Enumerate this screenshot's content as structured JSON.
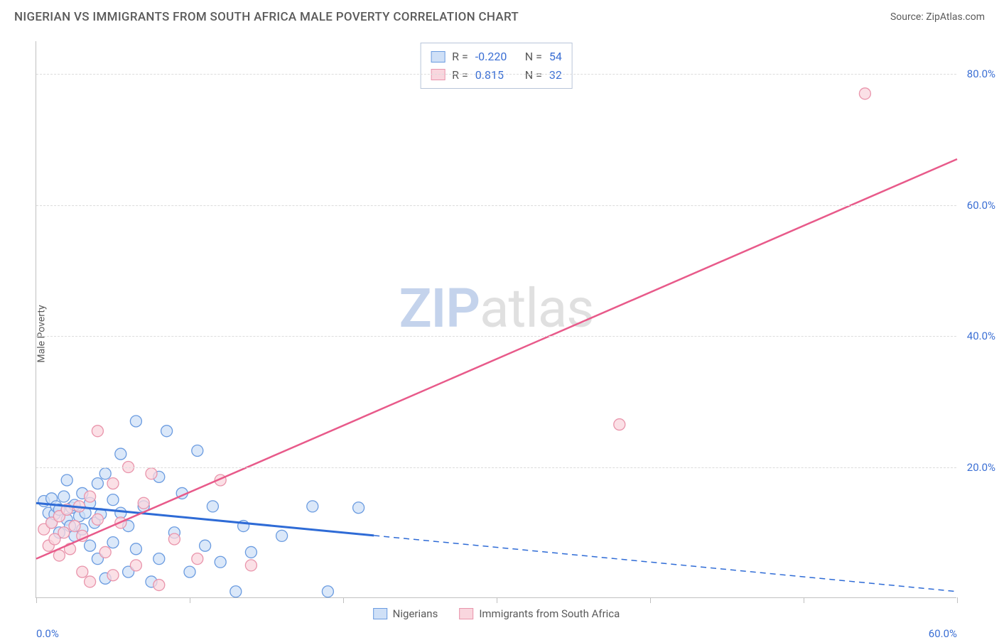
{
  "title": "NIGERIAN VS IMMIGRANTS FROM SOUTH AFRICA MALE POVERTY CORRELATION CHART",
  "source": "Source: ZipAtlas.com",
  "y_axis_label": "Male Poverty",
  "watermark": {
    "part1": "ZIP",
    "part2": "atlas"
  },
  "chart": {
    "type": "scatter",
    "xlim": [
      0,
      60
    ],
    "ylim": [
      0,
      85
    ],
    "x_ticks": [
      0,
      10,
      20,
      30,
      40,
      50,
      60
    ],
    "x_tick_labels": [
      "0.0%",
      "",
      "",
      "",
      "",
      "",
      "60.0%"
    ],
    "y_ticks": [
      20,
      40,
      60,
      80
    ],
    "y_tick_labels": [
      "20.0%",
      "40.0%",
      "60.0%",
      "80.0%"
    ],
    "grid_color": "#dcdcdc",
    "axis_color": "#c0c0c0",
    "background_color": "#ffffff",
    "tick_label_color": "#3b6fd4",
    "series": [
      {
        "name": "Nigerians",
        "color_fill": "#cfe0f7",
        "color_stroke": "#6a9be0",
        "marker_radius": 8,
        "trend_color": "#2e6bd6",
        "trend_width": 3,
        "trend_solid_x_end": 22,
        "trend": {
          "x1": 0,
          "y1": 14.5,
          "x2": 60,
          "y2": 1.0
        },
        "R": "-0.220",
        "N": "54",
        "points": [
          [
            0.5,
            14.8
          ],
          [
            0.8,
            13.0
          ],
          [
            1.0,
            15.2
          ],
          [
            1.0,
            11.5
          ],
          [
            1.2,
            12.8
          ],
          [
            1.3,
            14.0
          ],
          [
            1.5,
            10.0
          ],
          [
            1.5,
            13.5
          ],
          [
            1.8,
            15.5
          ],
          [
            2.0,
            12.0
          ],
          [
            2.0,
            18.0
          ],
          [
            2.2,
            11.0
          ],
          [
            2.3,
            13.8
          ],
          [
            2.5,
            9.5
          ],
          [
            2.5,
            14.2
          ],
          [
            2.8,
            12.5
          ],
          [
            3.0,
            16.0
          ],
          [
            3.0,
            10.5
          ],
          [
            3.2,
            13.0
          ],
          [
            3.5,
            8.0
          ],
          [
            3.5,
            14.5
          ],
          [
            3.8,
            11.5
          ],
          [
            4.0,
            17.5
          ],
          [
            4.0,
            6.0
          ],
          [
            4.2,
            12.8
          ],
          [
            4.5,
            19.0
          ],
          [
            4.5,
            3.0
          ],
          [
            5.0,
            15.0
          ],
          [
            5.0,
            8.5
          ],
          [
            5.5,
            13.0
          ],
          [
            5.5,
            22.0
          ],
          [
            6.0,
            4.0
          ],
          [
            6.0,
            11.0
          ],
          [
            6.5,
            27.0
          ],
          [
            6.5,
            7.5
          ],
          [
            7.0,
            14.0
          ],
          [
            7.5,
            2.5
          ],
          [
            8.0,
            18.5
          ],
          [
            8.0,
            6.0
          ],
          [
            8.5,
            25.5
          ],
          [
            9.0,
            10.0
          ],
          [
            9.5,
            16.0
          ],
          [
            10.0,
            4.0
          ],
          [
            10.5,
            22.5
          ],
          [
            11.0,
            8.0
          ],
          [
            11.5,
            14.0
          ],
          [
            12.0,
            5.5
          ],
          [
            13.0,
            1.0
          ],
          [
            13.5,
            11.0
          ],
          [
            14.0,
            7.0
          ],
          [
            16.0,
            9.5
          ],
          [
            18.0,
            14.0
          ],
          [
            19.0,
            1.0
          ],
          [
            21.0,
            13.8
          ]
        ]
      },
      {
        "name": "Immigrants from South Africa",
        "color_fill": "#f9d6de",
        "color_stroke": "#e994ab",
        "marker_radius": 8,
        "trend_color": "#e85a8a",
        "trend_width": 2.5,
        "trend_solid_x_end": 60,
        "trend": {
          "x1": 0,
          "y1": 6.0,
          "x2": 60,
          "y2": 67.0
        },
        "R": "0.815",
        "N": "32",
        "points": [
          [
            0.5,
            10.5
          ],
          [
            0.8,
            8.0
          ],
          [
            1.0,
            11.5
          ],
          [
            1.2,
            9.0
          ],
          [
            1.5,
            12.5
          ],
          [
            1.5,
            6.5
          ],
          [
            1.8,
            10.0
          ],
          [
            2.0,
            13.5
          ],
          [
            2.2,
            7.5
          ],
          [
            2.5,
            11.0
          ],
          [
            2.8,
            14.0
          ],
          [
            3.0,
            4.0
          ],
          [
            3.0,
            9.5
          ],
          [
            3.5,
            15.5
          ],
          [
            3.5,
            2.5
          ],
          [
            4.0,
            12.0
          ],
          [
            4.0,
            25.5
          ],
          [
            4.5,
            7.0
          ],
          [
            5.0,
            17.5
          ],
          [
            5.0,
            3.5
          ],
          [
            5.5,
            11.5
          ],
          [
            6.0,
            20.0
          ],
          [
            6.5,
            5.0
          ],
          [
            7.0,
            14.5
          ],
          [
            7.5,
            19.0
          ],
          [
            8.0,
            2.0
          ],
          [
            9.0,
            9.0
          ],
          [
            10.5,
            6.0
          ],
          [
            12.0,
            18.0
          ],
          [
            14.0,
            5.0
          ],
          [
            38.0,
            26.5
          ],
          [
            54.0,
            77.0
          ]
        ]
      }
    ]
  },
  "legend_top": [
    {
      "swatch_fill": "#cfe0f7",
      "swatch_border": "#6a9be0",
      "R": "-0.220",
      "N": "54"
    },
    {
      "swatch_fill": "#f9d6de",
      "swatch_border": "#e994ab",
      "R": " 0.815",
      "N": "32"
    }
  ],
  "legend_bottom": [
    {
      "swatch_fill": "#cfe0f7",
      "swatch_border": "#6a9be0",
      "label": "Nigerians"
    },
    {
      "swatch_fill": "#f9d6de",
      "swatch_border": "#e994ab",
      "label": "Immigrants from South Africa"
    }
  ]
}
